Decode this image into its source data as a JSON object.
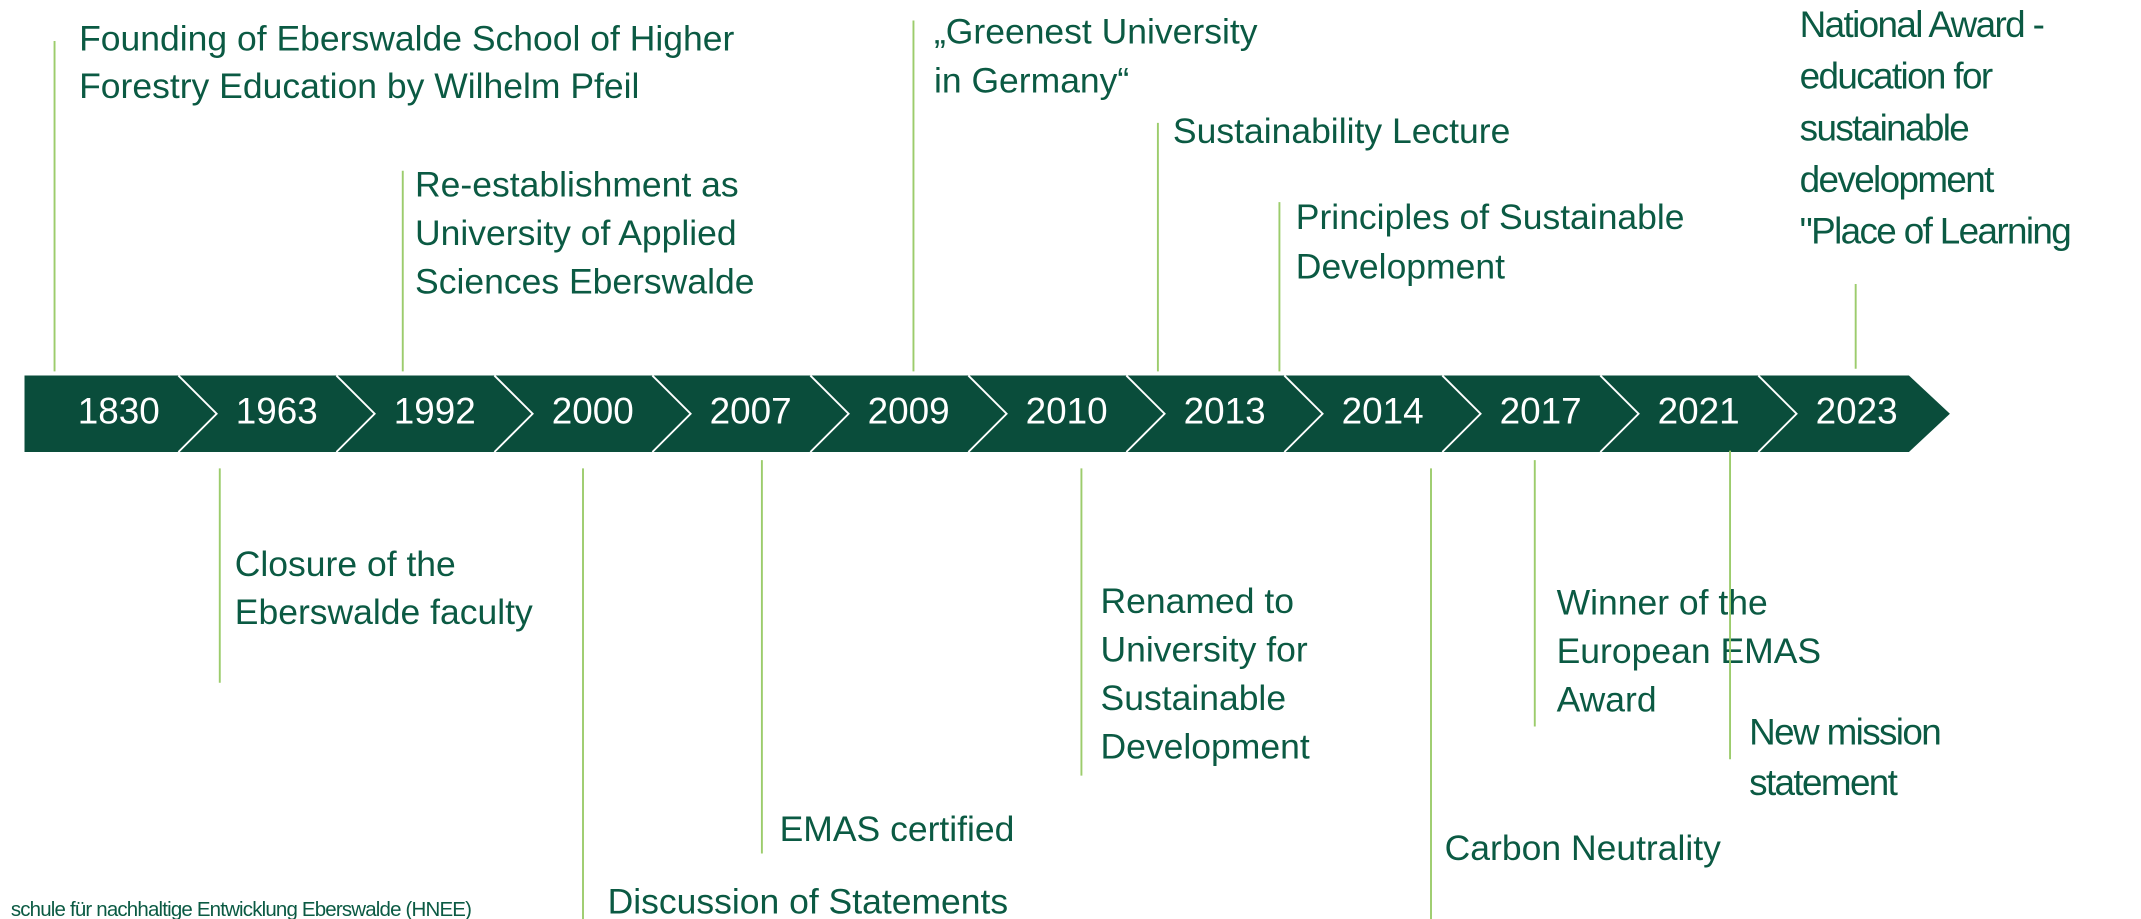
{
  "timeline": {
    "years": [
      "1830",
      "1963",
      "1992",
      "2000",
      "2007",
      "2009",
      "2010",
      "2013",
      "2014",
      "2017",
      "2021",
      "2023"
    ],
    "events": [
      {
        "lines": [
          "Founding of Eberswalde School of Higher",
          "Forestry Education by Wilhelm Pfeil"
        ]
      },
      {
        "lines": [
          "Closure of the",
          "Eberswalde faculty"
        ]
      },
      {
        "lines": [
          "Re-establishment as",
          "University of Applied",
          "Sciences Eberswalde"
        ]
      },
      {
        "lines": [
          "Discussion of Statements"
        ]
      },
      {
        "lines": [
          "EMAS certified"
        ]
      },
      {
        "lines": [
          "„Greenest University",
          "in Germany“"
        ]
      },
      {
        "lines": [
          "Renamed to",
          "University for",
          "Sustainable",
          "Development"
        ]
      },
      {
        "lines": [
          "Sustainability Lecture"
        ]
      },
      {
        "lines": [
          "Principles of Sustainable",
          "Development"
        ]
      },
      {
        "lines": [
          "Carbon Neutrality"
        ]
      },
      {
        "lines": [
          "Winner of the",
          "European EMAS",
          "Award"
        ]
      },
      {
        "lines": [
          "New mission",
          "statement"
        ]
      },
      {
        "lines": [
          "National Award -",
          "education for",
          "sustainable",
          "development",
          "\"Place of Learning"
        ]
      }
    ]
  },
  "footer": "schule für nachhaltige Entwicklung Eberswalde (HNEE)"
}
